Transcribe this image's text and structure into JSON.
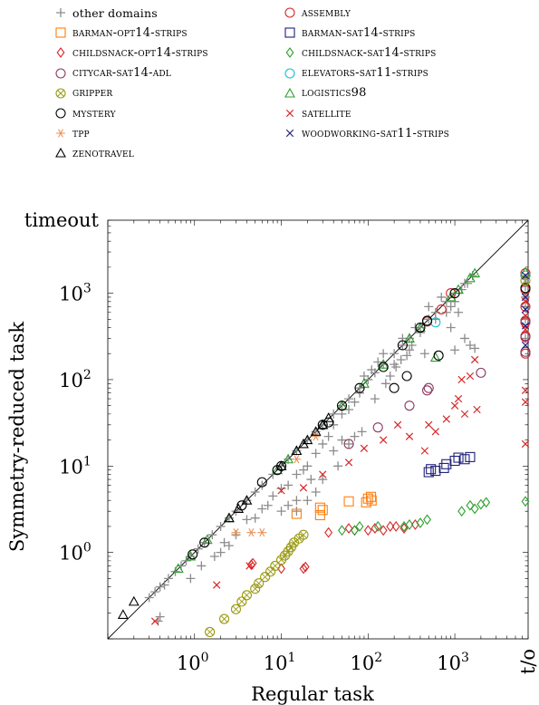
{
  "chart_data": {
    "type": "scatter",
    "title": "",
    "xlabel": "Regular task",
    "ylabel": "Symmetry-reduced task",
    "x_scale": "log",
    "y_scale": "log",
    "xlim": [
      0.1,
      7000
    ],
    "ylim": [
      0.1,
      7000
    ],
    "x_ticks": [
      {
        "value": 1,
        "base": "10",
        "exp": "0"
      },
      {
        "value": 10,
        "base": "10",
        "exp": "1"
      },
      {
        "value": 100,
        "base": "10",
        "exp": "2"
      },
      {
        "value": 1000,
        "base": "10",
        "exp": "3"
      }
    ],
    "y_ticks": [
      {
        "value": 1,
        "base": "10",
        "exp": "0"
      },
      {
        "value": 10,
        "base": "10",
        "exp": "1"
      },
      {
        "value": 100,
        "base": "10",
        "exp": "2"
      },
      {
        "value": 1000,
        "base": "10",
        "exp": "3"
      }
    ],
    "x_timeout_label": "t/o",
    "y_timeout_label": "timeout",
    "diagonal": true,
    "grid": false,
    "legend_position": "top",
    "series": [
      {
        "name": "other domains",
        "marker": "plus",
        "color": "#8c8c8c",
        "points": [
          [
            0.3,
            0.3
          ],
          [
            0.35,
            0.35
          ],
          [
            0.4,
            0.4
          ],
          [
            0.45,
            0.42
          ],
          [
            0.5,
            0.5
          ],
          [
            0.6,
            0.6
          ],
          [
            0.7,
            0.7
          ],
          [
            0.8,
            0.8
          ],
          [
            0.9,
            0.9
          ],
          [
            1.1,
            1.1
          ],
          [
            1.3,
            1.3
          ],
          [
            1.6,
            1.6
          ],
          [
            2,
            2
          ],
          [
            2.5,
            2.5
          ],
          [
            3,
            3
          ],
          [
            4,
            4
          ],
          [
            5,
            5
          ],
          [
            6,
            6
          ],
          [
            8,
            8
          ],
          [
            10,
            10
          ],
          [
            12,
            12
          ],
          [
            15,
            15
          ],
          [
            20,
            20
          ],
          [
            25,
            25
          ],
          [
            30,
            30
          ],
          [
            40,
            40
          ],
          [
            50,
            50
          ],
          [
            60,
            60
          ],
          [
            80,
            80
          ],
          [
            100,
            100
          ],
          [
            120,
            120
          ],
          [
            150,
            150
          ],
          [
            200,
            200
          ],
          [
            250,
            250
          ],
          [
            300,
            300
          ],
          [
            400,
            400
          ],
          [
            500,
            500
          ],
          [
            600,
            600
          ],
          [
            800,
            800
          ],
          [
            1000,
            1000
          ],
          [
            1300,
            1300
          ],
          [
            1600,
            1600
          ],
          [
            0.38,
            0.16
          ],
          [
            0.4,
            0.18
          ],
          [
            1.7,
            0.9
          ],
          [
            2.2,
            1.3
          ],
          [
            2.5,
            1.2
          ],
          [
            3,
            1.6
          ],
          [
            4,
            2.4
          ],
          [
            6,
            3.2
          ],
          [
            8,
            4.5
          ],
          [
            10,
            5.5
          ],
          [
            12,
            6
          ],
          [
            15,
            8
          ],
          [
            20,
            10
          ],
          [
            18,
            9
          ],
          [
            25,
            14
          ],
          [
            30,
            18
          ],
          [
            35,
            22
          ],
          [
            40,
            30
          ],
          [
            50,
            40
          ],
          [
            60,
            45
          ],
          [
            70,
            55
          ],
          [
            80,
            70
          ],
          [
            90,
            110
          ],
          [
            110,
            130
          ],
          [
            130,
            160
          ],
          [
            150,
            200
          ],
          [
            200,
            150
          ],
          [
            250,
            300
          ],
          [
            300,
            220
          ],
          [
            350,
            400
          ],
          [
            400,
            350
          ],
          [
            450,
            200
          ],
          [
            500,
            700
          ],
          [
            600,
            500
          ],
          [
            700,
            900
          ],
          [
            800,
            600
          ],
          [
            900,
            700
          ],
          [
            1000,
            800
          ],
          [
            1200,
            1100
          ],
          [
            1400,
            1300
          ],
          [
            1100,
            600
          ],
          [
            900,
            400
          ],
          [
            1000,
            220
          ],
          [
            1300,
            300
          ],
          [
            1500,
            250
          ],
          [
            1700,
            230
          ],
          [
            40,
            15
          ],
          [
            50,
            20
          ],
          [
            60,
            18
          ],
          [
            15,
            3
          ],
          [
            20,
            4
          ],
          [
            25,
            5
          ],
          [
            30,
            7
          ],
          [
            45,
            10
          ],
          [
            70,
            22
          ],
          [
            85,
            25
          ],
          [
            120,
            60
          ],
          [
            160,
            90
          ],
          [
            180,
            110
          ],
          [
            210,
            140
          ],
          [
            240,
            170
          ],
          [
            280,
            190
          ],
          [
            320,
            250
          ],
          [
            10,
            3
          ],
          [
            12,
            3.5
          ],
          [
            15,
            4
          ],
          [
            22,
            7
          ],
          [
            0.9,
            0.5
          ],
          [
            1.2,
            0.7
          ],
          [
            2,
            1
          ],
          [
            5,
            2.5
          ],
          [
            7,
            3.5
          ]
        ]
      },
      {
        "name": "ASSEMBLY",
        "marker": "circle",
        "color": "#d62728",
        "points": [
          [
            480,
            470
          ],
          [
            700,
            650
          ],
          [
            900,
            1000
          ]
        ]
      },
      {
        "name": "BARMAN-OPT14-STRIPS",
        "marker": "square",
        "color": "#ff7f0e",
        "points": [
          [
            15,
            2.8
          ],
          [
            28,
            2.7
          ],
          [
            28,
            3.3
          ],
          [
            30,
            3.1
          ],
          [
            60,
            3.9
          ],
          [
            95,
            3.8
          ],
          [
            100,
            4.2
          ],
          [
            110,
            4.0
          ],
          [
            108,
            4.4
          ]
        ]
      },
      {
        "name": "BARMAN-SAT14-STRIPS",
        "marker": "square",
        "color": "#1f1f7a",
        "points": [
          [
            500,
            8.5
          ],
          [
            530,
            9.2
          ],
          [
            600,
            8.8
          ],
          [
            750,
            9.5
          ],
          [
            800,
            10.5
          ],
          [
            1000,
            11.5
          ],
          [
            1100,
            12.5
          ],
          [
            1300,
            12.0
          ],
          [
            1500,
            12.7
          ]
        ]
      },
      {
        "name": "CHILDSNACK-OPT14-STRIPS",
        "marker": "diamond",
        "color": "#d62728",
        "points": [
          [
            4.5,
            0.72
          ],
          [
            4.7,
            0.75
          ],
          [
            10,
            0.65
          ],
          [
            18,
            0.65
          ],
          [
            19,
            0.68
          ],
          [
            35,
            1.7
          ],
          [
            60,
            1.9
          ],
          [
            70,
            1.8
          ],
          [
            100,
            1.8
          ],
          [
            120,
            1.9
          ],
          [
            150,
            1.8
          ],
          [
            180,
            2.0
          ],
          [
            210,
            2.0
          ],
          [
            260,
            1.9
          ],
          [
            350,
            2.1
          ]
        ]
      },
      {
        "name": "CHILDSNACK-SAT14-STRIPS",
        "marker": "diamond",
        "color": "#2ca02c",
        "points": [
          [
            50,
            1.8
          ],
          [
            70,
            1.8
          ],
          [
            80,
            2.0
          ],
          [
            130,
            2.0
          ],
          [
            260,
            2.0
          ],
          [
            300,
            2.1
          ],
          [
            400,
            2.2
          ],
          [
            480,
            2.4
          ],
          [
            1200,
            3.0
          ],
          [
            1500,
            3.5
          ],
          [
            1700,
            3.2
          ],
          [
            2000,
            3.6
          ],
          [
            2300,
            3.8
          ]
        ]
      },
      {
        "name": "CITYCAR-SAT14-ADL",
        "marker": "circle",
        "color": "#8b3a62",
        "points": [
          [
            60,
            18
          ],
          [
            130,
            28
          ],
          [
            300,
            50
          ],
          [
            480,
            75
          ],
          [
            500,
            80
          ],
          [
            2000,
            120
          ]
        ]
      },
      {
        "name": "ELEVATORS-SAT11-STRIPS",
        "marker": "circle",
        "color": "#17becf",
        "points": [
          [
            600,
            460
          ]
        ]
      },
      {
        "name": "GRIPPER",
        "marker": "otimes",
        "color": "#9a9a10",
        "points": [
          [
            1.5,
            0.12
          ],
          [
            2.2,
            0.17
          ],
          [
            3,
            0.22
          ],
          [
            3.5,
            0.27
          ],
          [
            4,
            0.32
          ],
          [
            5,
            0.38
          ],
          [
            5.5,
            0.44
          ],
          [
            6.5,
            0.52
          ],
          [
            7.5,
            0.6
          ],
          [
            8.5,
            0.7
          ],
          [
            10,
            0.82
          ],
          [
            11,
            0.92
          ],
          [
            12,
            1.03
          ],
          [
            13,
            1.15
          ],
          [
            14,
            1.3
          ],
          [
            16,
            1.45
          ],
          [
            18,
            1.6
          ]
        ]
      },
      {
        "name": "LOGISTICS98",
        "marker": "triangle",
        "color": "#2ca02c",
        "points": [
          [
            0.65,
            0.65
          ],
          [
            0.9,
            0.9
          ],
          [
            1.4,
            1.4
          ],
          [
            2.5,
            2.5
          ],
          [
            9,
            9
          ],
          [
            12,
            12
          ],
          [
            15,
            15
          ],
          [
            30,
            30
          ],
          [
            50,
            50
          ],
          [
            90,
            90
          ],
          [
            150,
            150
          ],
          [
            300,
            300
          ],
          [
            400,
            400
          ],
          [
            600,
            180
          ],
          [
            900,
            900
          ],
          [
            1100,
            1100
          ],
          [
            1500,
            1500
          ],
          [
            1700,
            1700
          ]
        ]
      },
      {
        "name": "MYSTERY",
        "marker": "circle",
        "color": "#000000",
        "points": [
          [
            0.95,
            0.95
          ],
          [
            1.3,
            1.3
          ],
          [
            3.5,
            3.5
          ],
          [
            6,
            6.5
          ],
          [
            9,
            9
          ],
          [
            10,
            10
          ],
          [
            30,
            30
          ],
          [
            35,
            32
          ],
          [
            50,
            50
          ],
          [
            80,
            80
          ],
          [
            150,
            140
          ],
          [
            250,
            250
          ],
          [
            400,
            400
          ],
          [
            480,
            480
          ],
          [
            200,
            80
          ],
          [
            280,
            110
          ],
          [
            650,
            190
          ],
          [
            1000,
            1000
          ]
        ]
      },
      {
        "name": "SATELLITE",
        "marker": "cross",
        "color": "#d62728",
        "points": [
          [
            0.35,
            0.16
          ],
          [
            1.8,
            0.42
          ],
          [
            4.3,
            0.7
          ],
          [
            10,
            5.2
          ],
          [
            18,
            5.6
          ],
          [
            30,
            8
          ],
          [
            60,
            11
          ],
          [
            90,
            16
          ],
          [
            150,
            20
          ],
          [
            220,
            30
          ],
          [
            300,
            22
          ],
          [
            450,
            15
          ],
          [
            500,
            30
          ],
          [
            600,
            25
          ],
          [
            800,
            35
          ],
          [
            1000,
            50
          ],
          [
            1100,
            60
          ],
          [
            1300,
            40
          ],
          [
            1800,
            45
          ],
          [
            1200,
            100
          ],
          [
            1500,
            110
          ],
          [
            1700,
            170
          ]
        ]
      },
      {
        "name": "TPP",
        "marker": "asterisk",
        "color": "#e6935a",
        "points": [
          [
            3,
            1.7
          ],
          [
            4.5,
            1.7
          ],
          [
            6,
            1.7
          ],
          [
            15,
            12
          ],
          [
            25,
            22
          ]
        ]
      },
      {
        "name": "WOODWORKING-SAT11-STRIPS",
        "marker": "cross",
        "color": "#1f1f7a",
        "points": []
      },
      {
        "name": "ZENOTRAVEL",
        "marker": "triangle",
        "color": "#000000",
        "points": [
          [
            0.15,
            0.19
          ],
          [
            0.2,
            0.27
          ],
          [
            2.5,
            2.5
          ],
          [
            3.2,
            3.2
          ],
          [
            4,
            4
          ],
          [
            10,
            10
          ],
          [
            15,
            15
          ],
          [
            18,
            18
          ],
          [
            20,
            20
          ],
          [
            25,
            25
          ],
          [
            30,
            30
          ],
          [
            35,
            36
          ]
        ]
      }
    ],
    "timeout_points": [
      {
        "series": "other domains",
        "y": [
          1500,
          1200,
          900,
          700,
          500,
          300
        ]
      },
      {
        "series": "ASSEMBLY",
        "y": [
          1700,
          1100,
          700,
          460,
          310,
          200
        ]
      },
      {
        "series": "ELEVATORS-SAT11-STRIPS",
        "y": [
          1600
        ]
      },
      {
        "series": "CHILDSNACK-SAT14-STRIPS",
        "y": [
          3.9
        ]
      },
      {
        "series": "CITYCAR-SAT14-ADL",
        "y": [
          480,
          320,
          210
        ]
      },
      {
        "series": "LOGISTICS98",
        "y": [
          1750
        ]
      },
      {
        "series": "MYSTERY",
        "y": [
          1150
        ]
      },
      {
        "series": "GRIPPER",
        "y": [
          1400
        ]
      },
      {
        "series": "SATELLITE",
        "y": [
          800,
          550,
          380,
          75,
          55,
          18
        ]
      },
      {
        "series": "WOODWORKING-SAT11-STRIPS",
        "y": [
          1600,
          900,
          650,
          420,
          250
        ]
      }
    ]
  }
}
